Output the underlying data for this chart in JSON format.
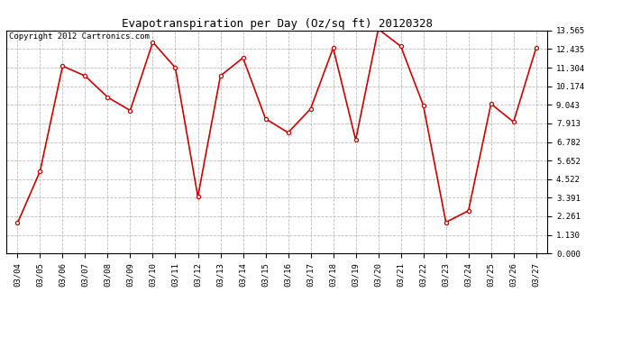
{
  "title": "Evapotranspiration per Day (Oz/sq ft) 20120328",
  "copyright": "Copyright 2012 Cartronics.com",
  "dates": [
    "03/04",
    "03/05",
    "03/06",
    "03/07",
    "03/08",
    "03/09",
    "03/10",
    "03/11",
    "03/12",
    "03/13",
    "03/14",
    "03/15",
    "03/16",
    "03/17",
    "03/18",
    "03/19",
    "03/20",
    "03/21",
    "03/22",
    "03/23",
    "03/24",
    "03/25",
    "03/26",
    "03/27"
  ],
  "values": [
    1.85,
    5.0,
    11.4,
    10.8,
    9.5,
    8.7,
    12.85,
    11.3,
    3.45,
    10.8,
    11.9,
    8.2,
    7.35,
    8.8,
    12.5,
    6.9,
    13.65,
    12.6,
    9.0,
    1.9,
    2.6,
    9.1,
    8.0,
    12.5
  ],
  "yticks": [
    0.0,
    1.13,
    2.261,
    3.391,
    4.522,
    5.652,
    6.782,
    7.913,
    9.043,
    10.174,
    11.304,
    12.435,
    13.565
  ],
  "ymin": 0.0,
  "ymax": 13.565,
  "line_color": "#cc0000",
  "marker": "o",
  "marker_size": 3,
  "background_color": "#ffffff",
  "grid_color": "#bbbbbb",
  "title_fontsize": 9,
  "copyright_fontsize": 6.5,
  "tick_fontsize": 6.5
}
